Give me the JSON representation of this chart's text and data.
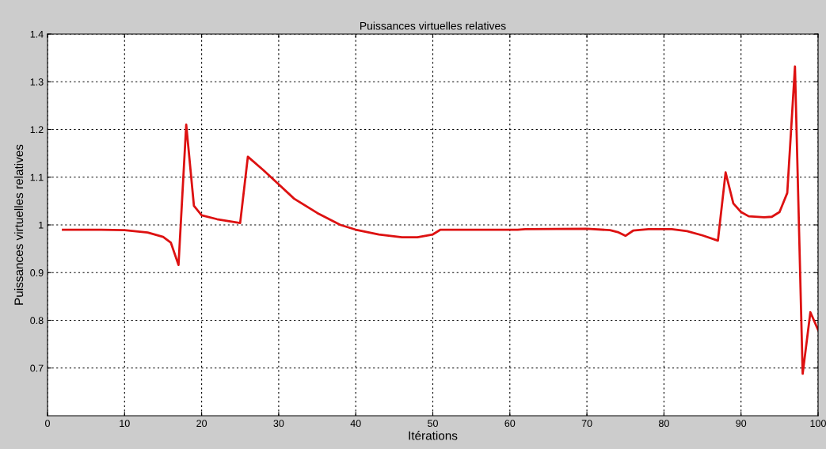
{
  "chart_data": {
    "type": "line",
    "title": "Puissances virtuelles relatives",
    "xlabel": "Itérations",
    "ylabel": "Puissances virtuelles relatives",
    "xlim": [
      0,
      100
    ],
    "xticks": [
      0,
      10,
      20,
      30,
      40,
      50,
      60,
      70,
      80,
      90,
      100
    ],
    "ylim": [
      0.6,
      1.4
    ],
    "yticks": [
      0.7,
      0.8,
      0.9,
      1,
      1.1,
      1.2,
      1.3,
      1.4
    ],
    "grid": true,
    "line_style": "solid",
    "marker": "none",
    "series": [
      {
        "color": "#dd1111",
        "x": [
          2,
          7,
          10,
          13,
          15,
          16,
          17,
          18,
          19,
          20,
          22,
          25,
          26,
          28,
          30,
          32,
          35,
          38,
          40,
          43,
          46,
          48,
          50,
          51,
          61,
          62,
          70,
          73,
          74,
          75,
          76,
          78,
          81,
          83,
          85,
          87,
          88,
          89,
          90,
          91,
          93,
          94,
          95,
          96,
          97,
          98,
          99,
          100
        ],
        "values": [
          0.99,
          0.99,
          0.989,
          0.984,
          0.975,
          0.963,
          0.916,
          1.21,
          1.04,
          1.02,
          1.012,
          1.004,
          1.143,
          1.115,
          1.085,
          1.055,
          1.025,
          1.0,
          0.99,
          0.98,
          0.974,
          0.974,
          0.98,
          0.99,
          0.99,
          0.991,
          0.992,
          0.989,
          0.985,
          0.977,
          0.988,
          0.991,
          0.991,
          0.987,
          0.978,
          0.967,
          1.11,
          1.045,
          1.027,
          1.018,
          1.016,
          1.017,
          1.027,
          1.067,
          1.332,
          0.688,
          0.817,
          0.78
        ]
      }
    ]
  }
}
